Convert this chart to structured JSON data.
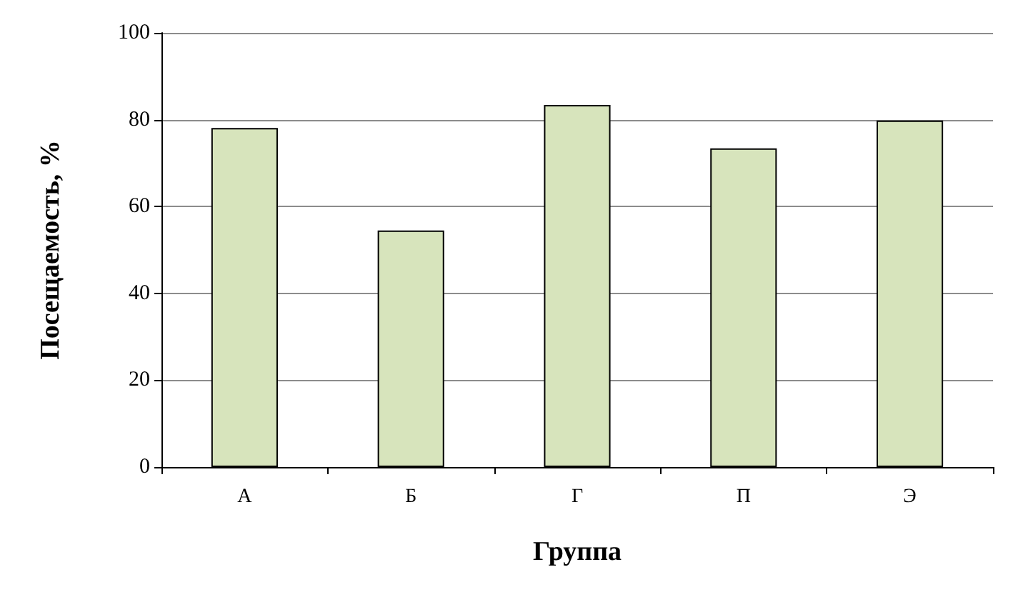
{
  "chart_data": {
    "type": "bar",
    "xlabel": "Группа",
    "ylabel": "Посещаемость, %",
    "categories": [
      "А",
      "Б",
      "Г",
      "П",
      "Э"
    ],
    "values": [
      78.1,
      54.5,
      83.4,
      73.4,
      79.8
    ],
    "color": "#d7e4bc",
    "ylim": [
      0,
      100
    ],
    "yticks": [
      0,
      20,
      40,
      60,
      80,
      100
    ],
    "grid": "y"
  }
}
